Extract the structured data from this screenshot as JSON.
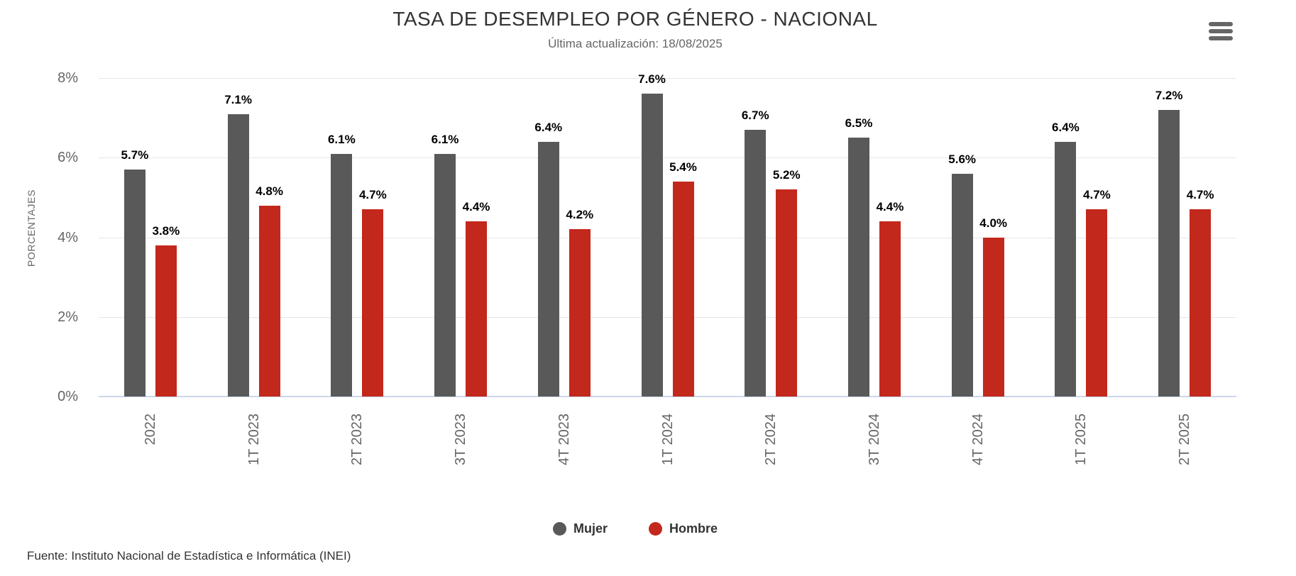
{
  "chart": {
    "title": "TASA DE DESEMPLEO POR GÉNERO - NACIONAL",
    "subtitle": "Última actualización: 18/08/2025",
    "source": "Fuente: Instituto Nacional de Estadística e Informática (INEI)",
    "menu_icon": "hamburger-menu-icon"
  },
  "colors": {
    "mujer": "#595959",
    "hombre": "#c3281c",
    "grid": "#e6e6e6",
    "axis_line": "#ccd6eb",
    "muted_text": "#666666",
    "dark_text": "#333333",
    "data_label": "#000000"
  },
  "chart_data": {
    "type": "bar",
    "title": "TASA DE DESEMPLEO POR GÉNERO - NACIONAL",
    "subtitle": "Última actualización: 18/08/2025",
    "xlabel": "",
    "ylabel": "PORCENTAJES",
    "ylim": [
      0,
      8
    ],
    "yticks": [
      0,
      2,
      4,
      6,
      8
    ],
    "ytick_suffix": "%",
    "grid": true,
    "legend_position": "bottom",
    "categories": [
      "2022",
      "1T 2023",
      "2T 2023",
      "3T 2023",
      "4T 2023",
      "1T 2024",
      "2T 2024",
      "3T 2024",
      "4T 2024",
      "1T 2025",
      "2T 2025"
    ],
    "series": [
      {
        "name": "Mujer",
        "color": "#595959",
        "values": [
          5.7,
          7.1,
          6.1,
          6.1,
          6.4,
          7.6,
          6.7,
          6.5,
          5.6,
          6.4,
          7.2
        ]
      },
      {
        "name": "Hombre",
        "color": "#c3281c",
        "values": [
          3.8,
          4.8,
          4.7,
          4.4,
          4.2,
          5.4,
          5.2,
          4.4,
          4.0,
          4.7,
          4.7
        ]
      }
    ],
    "data_label_decimals": 1,
    "data_label_suffix": "%"
  }
}
